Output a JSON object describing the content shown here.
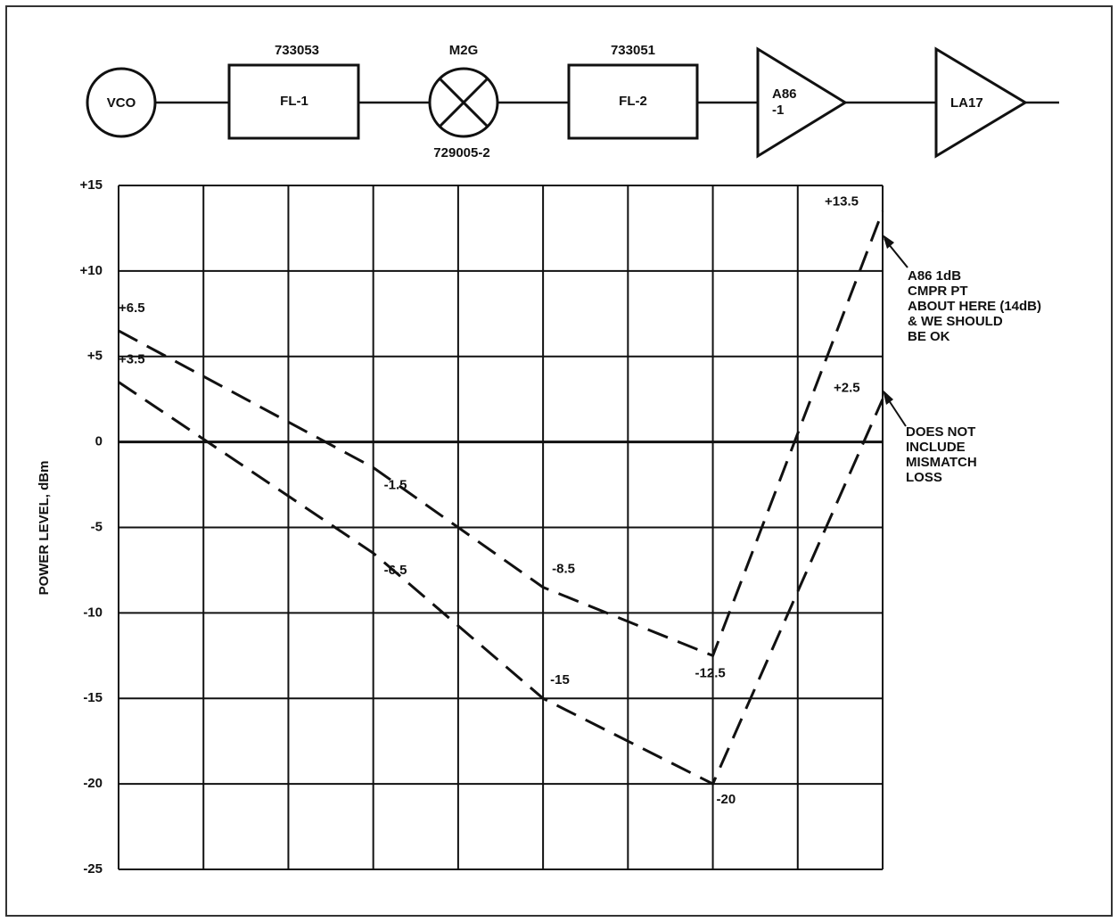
{
  "diagram": {
    "nodes": [
      {
        "label": "VCO"
      },
      {
        "label": "FL-1",
        "part": "733053"
      },
      {
        "label": "M2G",
        "part": "729005-2"
      },
      {
        "label": "FL-2",
        "part": "733051"
      },
      {
        "label": [
          "A86",
          "-1"
        ]
      },
      {
        "label": "LA17"
      }
    ]
  },
  "chart_data": {
    "type": "line",
    "ylabel": "POWER LEVEL, dBm",
    "x": [
      0,
      3,
      5,
      7,
      9
    ],
    "xlim": [
      0,
      9
    ],
    "xticks": [
      0,
      1,
      2,
      3,
      4,
      5,
      6,
      7,
      8,
      9
    ],
    "ylim": [
      -25,
      15
    ],
    "yticks": [
      {
        "value": 15,
        "label": "+15"
      },
      {
        "value": 10,
        "label": "+10"
      },
      {
        "value": 5,
        "label": "+5"
      },
      0,
      -5,
      -10,
      -15,
      -20,
      -25
    ],
    "grid": true,
    "series": [
      {
        "color": "#111111",
        "values": [
          6.5,
          -1.5,
          -8.5,
          -12.5,
          13.5
        ],
        "value_labels": [
          "+6.5",
          "-1.5",
          "-8.5",
          "-12.5",
          "+13.5"
        ]
      },
      {
        "color": "#111111",
        "values": [
          3.5,
          -6.5,
          -15,
          -20,
          2.5
        ],
        "value_labels": [
          "+3.5",
          "-6.5",
          "-15",
          "-20",
          "+2.5"
        ]
      }
    ],
    "annotations": [
      {
        "lines": [
          "A86 1dB",
          "CMPR PT",
          "ABOUT HERE (14dB)",
          "& WE SHOULD",
          "BE OK"
        ]
      },
      {
        "lines": [
          "DOES NOT",
          "INCLUDE",
          "MISMATCH",
          "LOSS"
        ]
      }
    ]
  }
}
